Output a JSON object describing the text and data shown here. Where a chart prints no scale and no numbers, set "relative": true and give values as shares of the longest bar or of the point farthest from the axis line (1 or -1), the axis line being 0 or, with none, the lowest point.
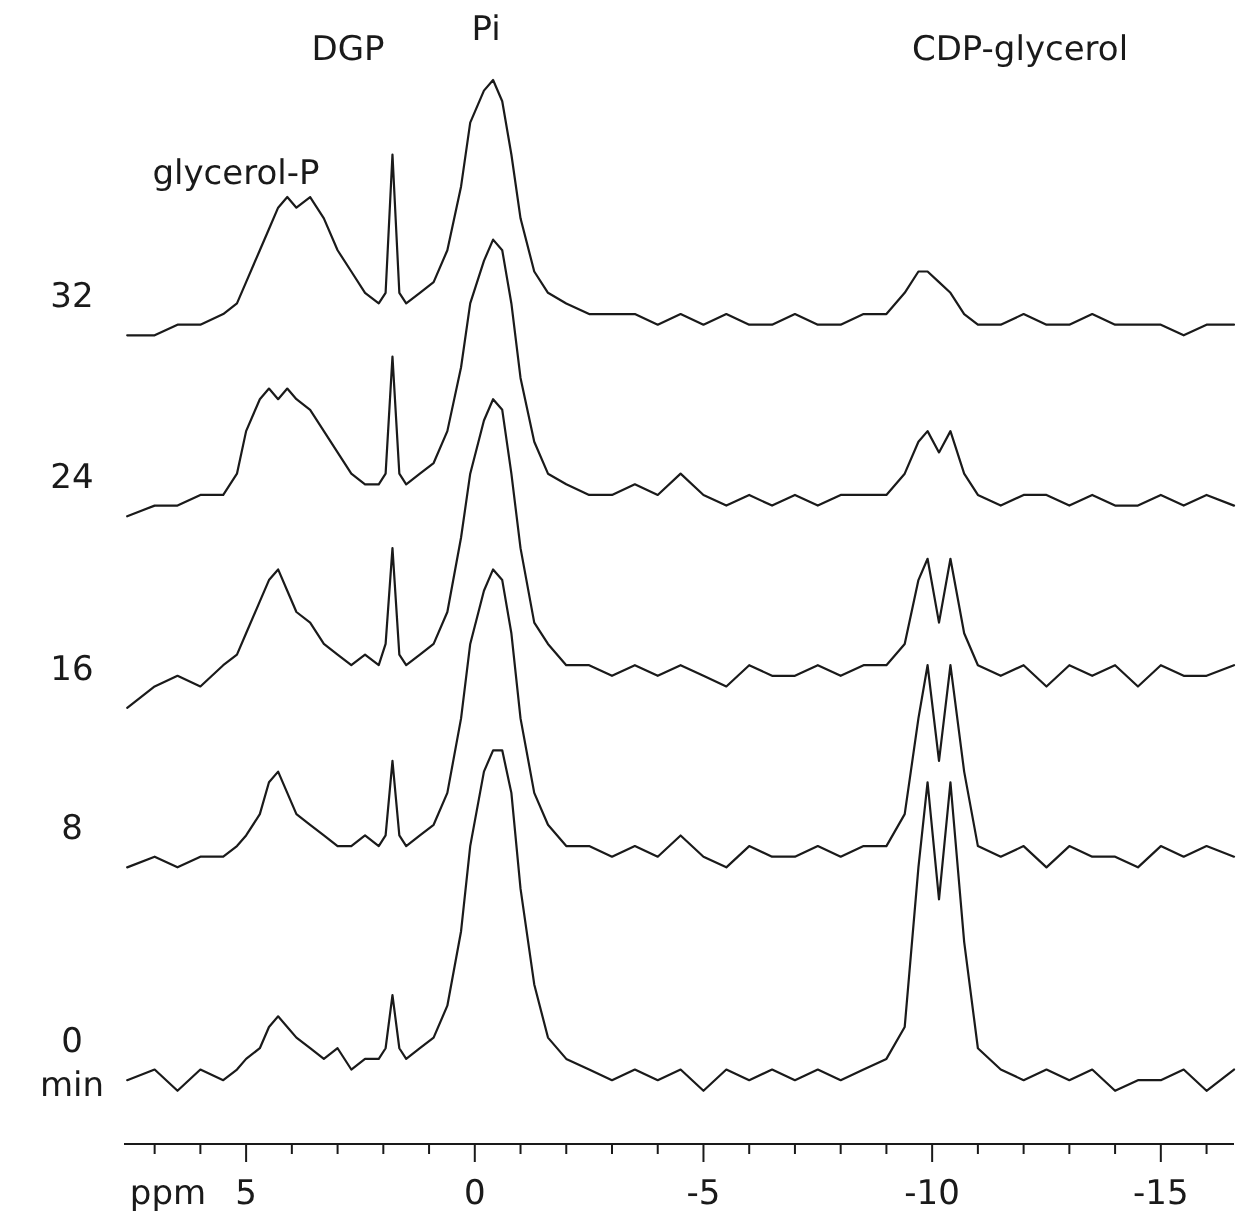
{
  "chart_data": {
    "type": "line",
    "relative": true,
    "xlabel": "ppm",
    "ylabel": "min",
    "xlim": [
      7.67,
      -16.6
    ],
    "xticks": [
      {
        "value": 7,
        "label": null
      },
      {
        "value": 6,
        "label": null
      },
      5,
      {
        "value": 4,
        "label": null
      },
      {
        "value": 3,
        "label": null
      },
      {
        "value": 2,
        "label": null
      },
      {
        "value": 1,
        "label": null
      },
      0,
      {
        "value": -1,
        "label": null
      },
      {
        "value": -2,
        "label": null
      },
      {
        "value": -3,
        "label": null
      },
      {
        "value": -4,
        "label": null
      },
      -5,
      {
        "value": -6,
        "label": null
      },
      {
        "value": -7,
        "label": null
      },
      {
        "value": -8,
        "label": null
      },
      {
        "value": -9,
        "label": null
      },
      -10,
      {
        "value": -11,
        "label": null
      },
      {
        "value": -12,
        "label": null
      },
      {
        "value": -13,
        "label": null
      },
      {
        "value": -14,
        "label": null
      },
      -15,
      {
        "value": -16,
        "label": null
      }
    ],
    "annotations": [
      "glycerol-P",
      "DGP",
      "Pi",
      "CDP-glycerol"
    ],
    "x": [
      7.6,
      7.0,
      6.5,
      6.0,
      5.5,
      5.2,
      5.0,
      4.7,
      4.5,
      4.3,
      4.1,
      3.9,
      3.6,
      3.3,
      3.0,
      2.7,
      2.4,
      2.1,
      1.95,
      1.8,
      1.65,
      1.5,
      1.2,
      0.9,
      0.6,
      0.3,
      0.1,
      -0.2,
      -0.4,
      -0.6,
      -0.8,
      -1.0,
      -1.3,
      -1.6,
      -2.0,
      -2.5,
      -3.0,
      -3.5,
      -4.0,
      -4.5,
      -5.0,
      -5.5,
      -6.0,
      -6.5,
      -7.0,
      -7.5,
      -8.0,
      -8.5,
      -9.0,
      -9.4,
      -9.7,
      -9.9,
      -10.15,
      -10.4,
      -10.7,
      -11.0,
      -11.5,
      -12.0,
      -12.5,
      -13.0,
      -13.5,
      -14.0,
      -14.5,
      -15.0,
      -15.5,
      -16.0,
      -16.6
    ],
    "series": [
      {
        "name": "0",
        "color": "#1a1a1a",
        "values": [
          0.06,
          0.07,
          0.05,
          0.07,
          0.06,
          0.07,
          0.08,
          0.09,
          0.11,
          0.12,
          0.11,
          0.1,
          0.09,
          0.08,
          0.09,
          0.07,
          0.08,
          0.08,
          0.09,
          0.14,
          0.09,
          0.08,
          0.09,
          0.1,
          0.13,
          0.2,
          0.28,
          0.35,
          0.37,
          0.37,
          0.33,
          0.24,
          0.15,
          0.1,
          0.08,
          0.07,
          0.06,
          0.07,
          0.06,
          0.07,
          0.05,
          0.07,
          0.06,
          0.07,
          0.06,
          0.07,
          0.06,
          0.07,
          0.08,
          0.11,
          0.26,
          0.34,
          0.23,
          0.34,
          0.19,
          0.09,
          0.07,
          0.06,
          0.07,
          0.06,
          0.07,
          0.05,
          0.06,
          0.06,
          0.07,
          0.05,
          0.07
        ]
      },
      {
        "name": "8",
        "color": "#1a1a1a",
        "values": [
          0.26,
          0.27,
          0.26,
          0.27,
          0.27,
          0.28,
          0.29,
          0.31,
          0.34,
          0.35,
          0.33,
          0.31,
          0.3,
          0.29,
          0.28,
          0.28,
          0.29,
          0.28,
          0.29,
          0.36,
          0.29,
          0.28,
          0.29,
          0.3,
          0.33,
          0.4,
          0.47,
          0.52,
          0.54,
          0.53,
          0.48,
          0.4,
          0.33,
          0.3,
          0.28,
          0.28,
          0.27,
          0.28,
          0.27,
          0.29,
          0.27,
          0.26,
          0.28,
          0.27,
          0.27,
          0.28,
          0.27,
          0.28,
          0.28,
          0.31,
          0.4,
          0.45,
          0.36,
          0.45,
          0.35,
          0.28,
          0.27,
          0.28,
          0.26,
          0.28,
          0.27,
          0.27,
          0.26,
          0.28,
          0.27,
          0.28,
          0.27
        ]
      },
      {
        "name": "16",
        "color": "#1a1a1a",
        "values": [
          0.41,
          0.43,
          0.44,
          0.43,
          0.45,
          0.46,
          0.48,
          0.51,
          0.53,
          0.54,
          0.52,
          0.5,
          0.49,
          0.47,
          0.46,
          0.45,
          0.46,
          0.45,
          0.47,
          0.56,
          0.46,
          0.45,
          0.46,
          0.47,
          0.5,
          0.57,
          0.63,
          0.68,
          0.7,
          0.69,
          0.63,
          0.56,
          0.49,
          0.47,
          0.45,
          0.45,
          0.44,
          0.45,
          0.44,
          0.45,
          0.44,
          0.43,
          0.45,
          0.44,
          0.44,
          0.45,
          0.44,
          0.45,
          0.45,
          0.47,
          0.53,
          0.55,
          0.49,
          0.55,
          0.48,
          0.45,
          0.44,
          0.45,
          0.43,
          0.45,
          0.44,
          0.45,
          0.43,
          0.45,
          0.44,
          0.44,
          0.45
        ]
      },
      {
        "name": "24",
        "color": "#1a1a1a",
        "values": [
          0.59,
          0.6,
          0.6,
          0.61,
          0.61,
          0.63,
          0.67,
          0.7,
          0.71,
          0.7,
          0.71,
          0.7,
          0.69,
          0.67,
          0.65,
          0.63,
          0.62,
          0.62,
          0.63,
          0.74,
          0.63,
          0.62,
          0.63,
          0.64,
          0.67,
          0.73,
          0.79,
          0.83,
          0.85,
          0.84,
          0.79,
          0.72,
          0.66,
          0.63,
          0.62,
          0.61,
          0.61,
          0.62,
          0.61,
          0.63,
          0.61,
          0.6,
          0.61,
          0.6,
          0.61,
          0.6,
          0.61,
          0.61,
          0.61,
          0.63,
          0.66,
          0.67,
          0.65,
          0.67,
          0.63,
          0.61,
          0.6,
          0.61,
          0.61,
          0.6,
          0.61,
          0.6,
          0.6,
          0.61,
          0.6,
          0.61,
          0.6
        ]
      },
      {
        "name": "32",
        "color": "#1a1a1a",
        "values": [
          0.76,
          0.76,
          0.77,
          0.77,
          0.78,
          0.79,
          0.81,
          0.84,
          0.86,
          0.88,
          0.89,
          0.88,
          0.89,
          0.87,
          0.84,
          0.82,
          0.8,
          0.79,
          0.8,
          0.93,
          0.8,
          0.79,
          0.8,
          0.81,
          0.84,
          0.9,
          0.96,
          0.99,
          1.0,
          0.98,
          0.93,
          0.87,
          0.82,
          0.8,
          0.79,
          0.78,
          0.78,
          0.78,
          0.77,
          0.78,
          0.77,
          0.78,
          0.77,
          0.77,
          0.78,
          0.77,
          0.77,
          0.78,
          0.78,
          0.8,
          0.82,
          0.82,
          0.81,
          0.8,
          0.78,
          0.77,
          0.77,
          0.78,
          0.77,
          0.77,
          0.78,
          0.77,
          0.77,
          0.77,
          0.76,
          0.77,
          0.77
        ]
      }
    ]
  }
}
